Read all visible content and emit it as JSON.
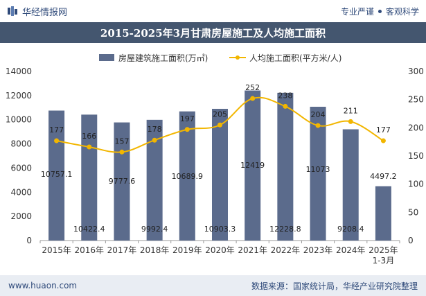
{
  "header": {
    "brand": "华经情报网",
    "tagline_left": "专业严谨",
    "tagline_right": "客观科学"
  },
  "title": "2015-2025年3月甘肃房屋施工及人均施工面积",
  "footer": {
    "url": "www.huaon.com",
    "source": "数据来源：国家统计局，华经产业研究院整理"
  },
  "colors": {
    "bar": "#5b6b8c",
    "line": "#f2b600",
    "band": "#44566f"
  },
  "chart_data": {
    "type": "bar",
    "categories": [
      "2015年",
      "2016年",
      "2017年",
      "2018年",
      "2019年",
      "2020年",
      "2021年",
      "2022年",
      "2023年",
      "2024年",
      "2025年\n1-3月"
    ],
    "series": [
      {
        "name": "房屋建筑施工面积(万㎡)",
        "type": "bar",
        "axis": "left",
        "values": [
          10757.1,
          10422.4,
          9777.6,
          9992.4,
          10689.9,
          10903.3,
          12419,
          12228.8,
          11073,
          9208.4,
          4497.2
        ],
        "labels": [
          "10757.1",
          "10422.4",
          "9777.6",
          "9992.4",
          "10689.9",
          "10903.3",
          "12419",
          "12228.8",
          "11073",
          "9208.4",
          "4497.2"
        ]
      },
      {
        "name": "人均施工面积(平方米/人)",
        "type": "line",
        "axis": "right",
        "values": [
          177,
          166,
          157,
          178,
          197,
          205,
          252,
          238,
          204,
          211,
          177
        ],
        "labels": [
          "177",
          "166",
          "157",
          "178",
          "197",
          "205",
          "252",
          "238",
          "204",
          "211",
          "177"
        ]
      }
    ],
    "y_left": {
      "min": 0,
      "max": 14000,
      "ticks": [
        "0",
        "2000",
        "4000",
        "6000",
        "8000",
        "10000",
        "12000",
        "14000"
      ]
    },
    "y_right": {
      "min": 0,
      "max": 300,
      "ticks": [
        "0",
        "50",
        "100",
        "150",
        "200",
        "250",
        "300"
      ]
    },
    "legend_position": "top",
    "grid": false
  }
}
